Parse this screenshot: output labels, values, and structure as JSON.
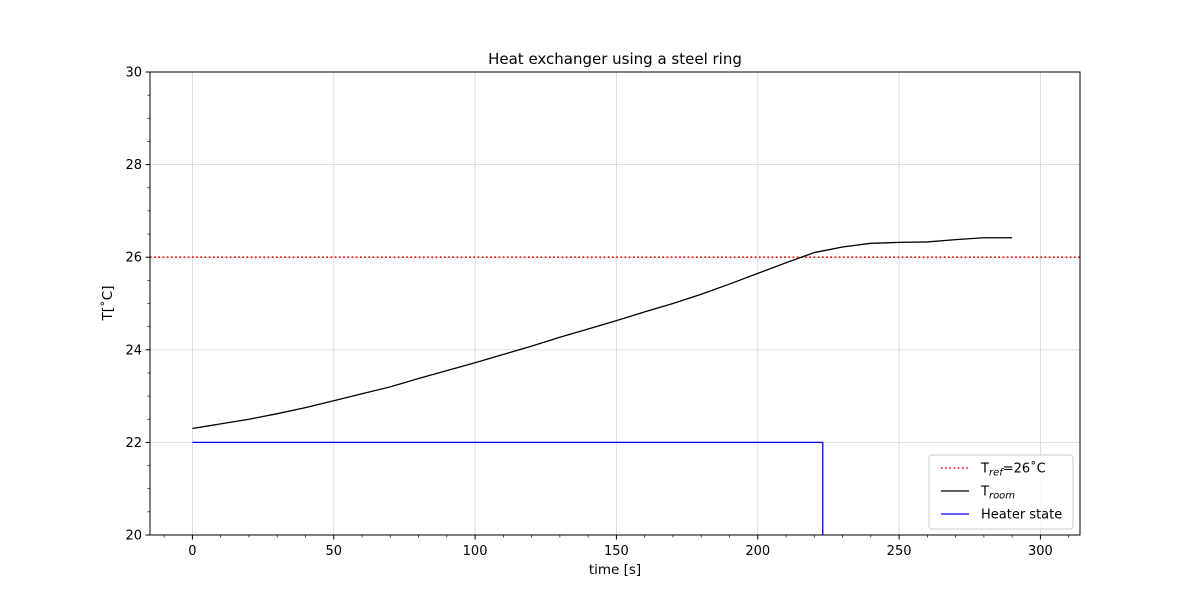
{
  "chart_data": {
    "type": "line",
    "title": "Heat exchanger using a steel ring",
    "xlabel": "time [s]",
    "ylabel": "T[˚C]",
    "xlim": [
      -15,
      314
    ],
    "ylim": [
      20,
      30
    ],
    "xticks": [
      0,
      50,
      100,
      150,
      200,
      250,
      300
    ],
    "yticks": [
      20,
      22,
      24,
      26,
      28,
      30
    ],
    "grid": true,
    "legend_position": "lower-right",
    "reference": {
      "value": 26,
      "color": "#ff0000",
      "style": "dotted",
      "legend": {
        "main": "T",
        "sub": "ref",
        "suffix": "=26˚C"
      }
    },
    "series": [
      {
        "color": "#000000",
        "legend": {
          "main": "T",
          "sub": "room",
          "suffix": ""
        },
        "x": [
          0,
          5,
          10,
          20,
          30,
          40,
          50,
          60,
          70,
          80,
          90,
          100,
          110,
          120,
          130,
          140,
          150,
          160,
          170,
          180,
          190,
          200,
          210,
          220,
          230,
          240,
          250,
          260,
          270,
          280,
          290
        ],
        "y": [
          22.3,
          22.35,
          22.4,
          22.5,
          22.62,
          22.75,
          22.9,
          23.05,
          23.2,
          23.38,
          23.55,
          23.72,
          23.9,
          24.08,
          24.27,
          24.45,
          24.63,
          24.82,
          25.0,
          25.2,
          25.42,
          25.65,
          25.88,
          26.1,
          26.22,
          26.3,
          26.32,
          26.33,
          26.38,
          26.42,
          26.42
        ]
      },
      {
        "color": "#0000ff",
        "legend": {
          "main": "Heater state",
          "sub": "",
          "suffix": ""
        },
        "step": true,
        "x": [
          0,
          223,
          223
        ],
        "y": [
          22,
          22,
          20
        ]
      }
    ]
  }
}
